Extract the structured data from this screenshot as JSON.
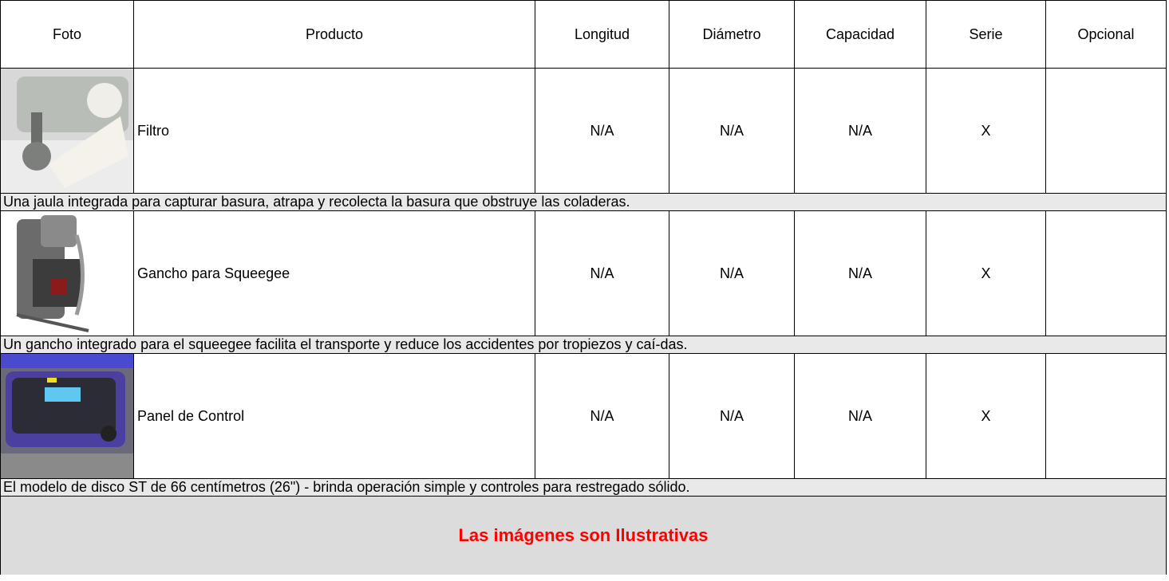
{
  "table": {
    "headers": [
      "Foto",
      "Producto",
      "Longitud",
      "Diámetro",
      "Capacidad",
      "Serie",
      "Opcional"
    ],
    "rows": [
      {
        "cells": [
          "Filtro",
          "N/A",
          "N/A",
          "N/A",
          "X"
        ],
        "description": "Una jaula integrada para capturar basura, atrapa y recolecta la basura que obstruye las coladeras."
      },
      {
        "cells": [
          "Gancho para Squeegee",
          "N/A",
          "N/A",
          "N/A",
          "X"
        ],
        "description": "Un gancho integrado para el squeegee facilita el transporte y reduce los accidentes por tropiezos y caí-das."
      },
      {
        "cells": [
          "Panel de Control",
          "N/A",
          "N/A",
          "N/A",
          "X"
        ],
        "description": "El modelo de disco ST de 66 centímetros (26\") - brinda operación simple y controles para restregado sólido."
      }
    ]
  },
  "footer": "Las imágenes son Ilustrativas"
}
